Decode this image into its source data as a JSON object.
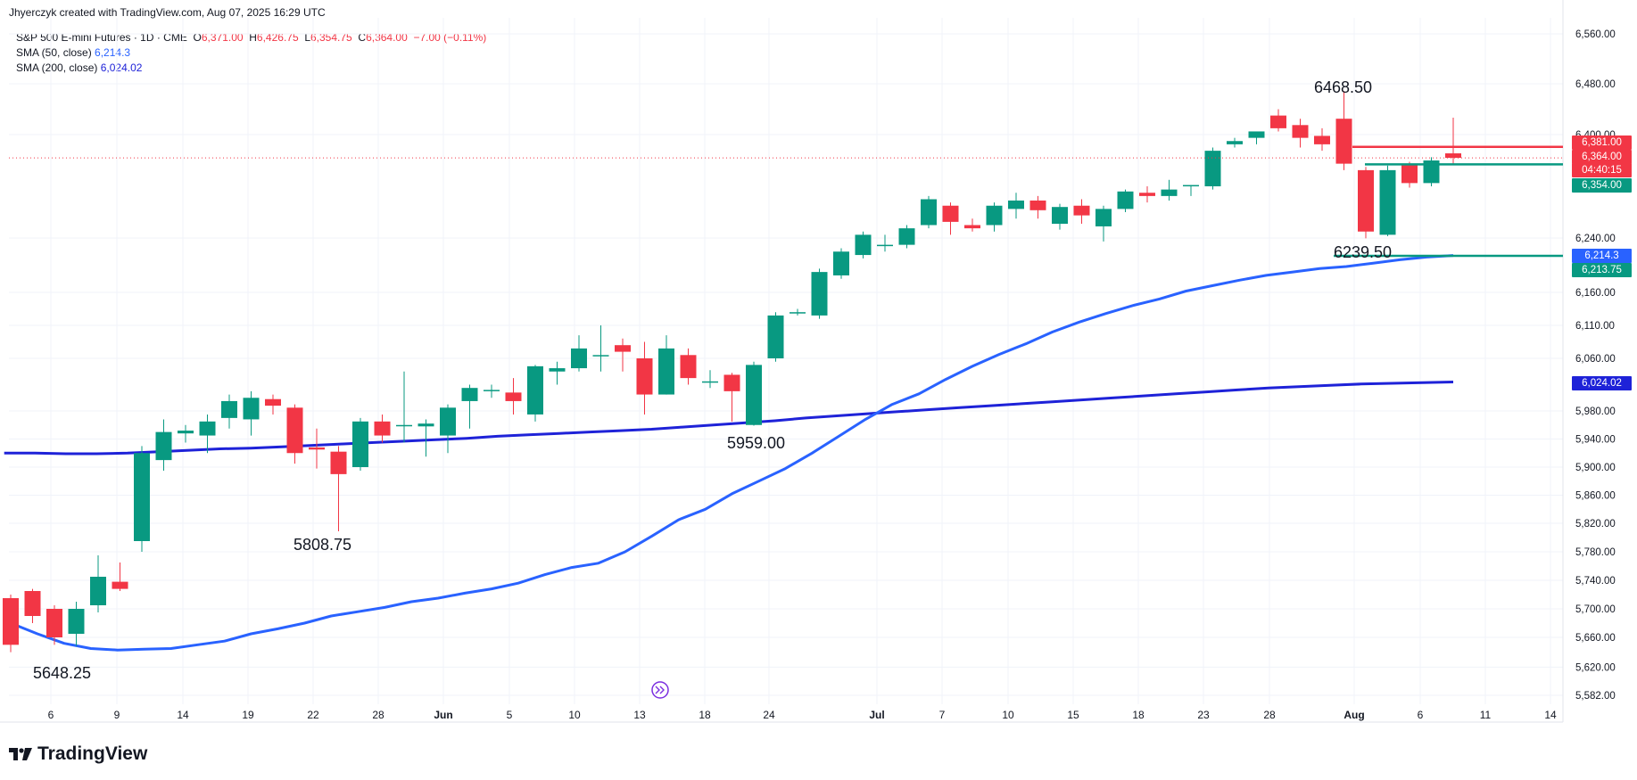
{
  "header": {
    "attribution": "Jhyerczyk created with TradingView.com, Aug 07, 2025 16:29 UTC"
  },
  "legend": {
    "symbol": "S&P 500 E-mini Futures · 1D · CME",
    "o_label": "O",
    "o_value": "6,371.00",
    "h_label": "H",
    "h_value": "6,426.75",
    "l_label": "L",
    "l_value": "6,354.75",
    "c_label": "C",
    "c_value": "6,364.00",
    "change": "−7.00 (−0.11%)",
    "sma50_label": "SMA (50, close)",
    "sma50_value": "6,214.3",
    "sma200_label": "SMA (200, close)",
    "sma200_value": "6,024.02"
  },
  "logo": {
    "text": "TradingView"
  },
  "colors": {
    "up": "#089981",
    "down": "#f23645",
    "sma50": "#2962ff",
    "sma200": "#1e22d8",
    "grid": "#f0f3fa"
  },
  "price_tags": {
    "resistance": "6,381.00",
    "last": "6,364.00",
    "countdown": "04:40:15",
    "support": "6,354.00",
    "sma50": "6,214.3",
    "low_line": "6,213.75",
    "sma200": "6,024.02"
  },
  "annotations": {
    "high": "6468.50",
    "low_aug": "6239.50",
    "low_jun20": "5959.00",
    "low_may22": "5808.75",
    "low_may6": "5648.25"
  },
  "chart_data": {
    "type": "candlestick",
    "y_ticks": [
      "6,560.00",
      "6,480.00",
      "6,400.00",
      "6,240.00",
      "6,160.00",
      "6,110.00",
      "6,060.00",
      "5,980.00",
      "5,940.00",
      "5,900.00",
      "5,860.00",
      "5,820.00",
      "5,780.00",
      "5,740.00",
      "5,700.00",
      "5,660.00",
      "5,620.00",
      "5,582.00"
    ],
    "x_ticks": [
      "6",
      "9",
      "14",
      "19",
      "22",
      "28",
      "Jun",
      "5",
      "10",
      "13",
      "18",
      "24",
      "Jul",
      "7",
      "10",
      "15",
      "18",
      "23",
      "28",
      "Aug",
      "6",
      "11",
      "14"
    ],
    "x_tick_bold": [
      "Jun",
      "Jul",
      "Aug"
    ],
    "candles": [
      {
        "o": 5715,
        "h": 5720,
        "l": 5640,
        "c": 5650
      },
      {
        "o": 5725,
        "h": 5728,
        "l": 5680,
        "c": 5690
      },
      {
        "o": 5700,
        "h": 5705,
        "l": 5650,
        "c": 5660
      },
      {
        "o": 5665,
        "h": 5710,
        "l": 5648.25,
        "c": 5700
      },
      {
        "o": 5705,
        "h": 5775,
        "l": 5695,
        "c": 5745
      },
      {
        "o": 5738,
        "h": 5765,
        "l": 5725,
        "c": 5728
      },
      {
        "o": 5795,
        "h": 5930,
        "l": 5780,
        "c": 5920
      },
      {
        "o": 5910,
        "h": 5968,
        "l": 5895,
        "c": 5950
      },
      {
        "o": 5948,
        "h": 5960,
        "l": 5935,
        "c": 5952
      },
      {
        "o": 5945,
        "h": 5975,
        "l": 5920,
        "c": 5965
      },
      {
        "o": 5970,
        "h": 6005,
        "l": 5955,
        "c": 5995
      },
      {
        "o": 5968,
        "h": 6010,
        "l": 5945,
        "c": 6000
      },
      {
        "o": 5998,
        "h": 6005,
        "l": 5975,
        "c": 5988
      },
      {
        "o": 5985,
        "h": 5990,
        "l": 5905,
        "c": 5920
      },
      {
        "o": 5928,
        "h": 5955,
        "l": 5898,
        "c": 5925
      },
      {
        "o": 5922,
        "h": 5930,
        "l": 5808.75,
        "c": 5890
      },
      {
        "o": 5900,
        "h": 5970,
        "l": 5895,
        "c": 5965
      },
      {
        "o": 5965,
        "h": 5975,
        "l": 5935,
        "c": 5945
      },
      {
        "o": 5960,
        "h": 6040,
        "l": 5935,
        "c": 5960
      },
      {
        "o": 5958,
        "h": 5968,
        "l": 5915,
        "c": 5962
      },
      {
        "o": 5945,
        "h": 5990,
        "l": 5920,
        "c": 5985
      },
      {
        "o": 5995,
        "h": 6020,
        "l": 5955,
        "c": 6015
      },
      {
        "o": 6010,
        "h": 6020,
        "l": 6000,
        "c": 6012
      },
      {
        "o": 6008,
        "h": 6030,
        "l": 5975,
        "c": 5995
      },
      {
        "o": 5975,
        "h": 6050,
        "l": 5965,
        "c": 6048
      },
      {
        "o": 6040,
        "h": 6055,
        "l": 6020,
        "c": 6045
      },
      {
        "o": 6045,
        "h": 6095,
        "l": 6040,
        "c": 6075
      },
      {
        "o": 6065,
        "h": 6110,
        "l": 6040,
        "c": 6065
      },
      {
        "o": 6080,
        "h": 6090,
        "l": 6040,
        "c": 6070
      },
      {
        "o": 6060,
        "h": 6085,
        "l": 5975,
        "c": 6005
      },
      {
        "o": 6005,
        "h": 6095,
        "l": 6005,
        "c": 6075
      },
      {
        "o": 6065,
        "h": 6075,
        "l": 6020,
        "c": 6030
      },
      {
        "o": 6025,
        "h": 6042,
        "l": 6015,
        "c": 6025
      },
      {
        "o": 6035,
        "h": 6038,
        "l": 5965,
        "c": 6010
      },
      {
        "o": 5960,
        "h": 6055,
        "l": 5959,
        "c": 6050
      },
      {
        "o": 6060,
        "h": 6130,
        "l": 6055,
        "c": 6125
      },
      {
        "o": 6130,
        "h": 6135,
        "l": 6125,
        "c": 6130
      },
      {
        "o": 6125,
        "h": 6195,
        "l": 6120,
        "c": 6190
      },
      {
        "o": 6185,
        "h": 6225,
        "l": 6180,
        "c": 6220
      },
      {
        "o": 6215,
        "h": 6250,
        "l": 6210,
        "c": 6245
      },
      {
        "o": 6230,
        "h": 6245,
        "l": 6220,
        "c": 6230
      },
      {
        "o": 6230,
        "h": 6260,
        "l": 6225,
        "c": 6255
      },
      {
        "o": 6260,
        "h": 6305,
        "l": 6255,
        "c": 6300
      },
      {
        "o": 6290,
        "h": 6295,
        "l": 6245,
        "c": 6265
      },
      {
        "o": 6260,
        "h": 6270,
        "l": 6250,
        "c": 6255
      },
      {
        "o": 6260,
        "h": 6295,
        "l": 6250,
        "c": 6290
      },
      {
        "o": 6285,
        "h": 6310,
        "l": 6270,
        "c": 6298
      },
      {
        "o": 6298,
        "h": 6305,
        "l": 6270,
        "c": 6283
      },
      {
        "o": 6262,
        "h": 6293,
        "l": 6253,
        "c": 6288
      },
      {
        "o": 6290,
        "h": 6300,
        "l": 6262,
        "c": 6275
      },
      {
        "o": 6258,
        "h": 6290,
        "l": 6235,
        "c": 6285
      },
      {
        "o": 6285,
        "h": 6315,
        "l": 6280,
        "c": 6312
      },
      {
        "o": 6310,
        "h": 6320,
        "l": 6295,
        "c": 6305
      },
      {
        "o": 6305,
        "h": 6330,
        "l": 6298,
        "c": 6315
      },
      {
        "o": 6320,
        "h": 6322,
        "l": 6305,
        "c": 6322
      },
      {
        "o": 6320,
        "h": 6380,
        "l": 6315,
        "c": 6375
      },
      {
        "o": 6385,
        "h": 6395,
        "l": 6380,
        "c": 6390
      },
      {
        "o": 6395,
        "h": 6405,
        "l": 6385,
        "c": 6405
      },
      {
        "o": 6430,
        "h": 6440,
        "l": 6405,
        "c": 6410
      },
      {
        "o": 6415,
        "h": 6425,
        "l": 6380,
        "c": 6395
      },
      {
        "o": 6398,
        "h": 6410,
        "l": 6375,
        "c": 6385
      },
      {
        "o": 6425,
        "h": 6468.5,
        "l": 6345,
        "c": 6355
      },
      {
        "o": 6345,
        "h": 6350,
        "l": 6239.5,
        "c": 6250
      },
      {
        "o": 6245,
        "h": 6352,
        "l": 6243,
        "c": 6345
      },
      {
        "o": 6355,
        "h": 6358,
        "l": 6318,
        "c": 6325
      },
      {
        "o": 6325,
        "h": 6365,
        "l": 6320,
        "c": 6360
      },
      {
        "o": 6371,
        "h": 6426.75,
        "l": 6354.75,
        "c": 6364
      }
    ],
    "sma50": [
      5680,
      5665,
      5652,
      5645,
      5643,
      5644,
      5645,
      5650,
      5655,
      5665,
      5672,
      5680,
      5690,
      5696,
      5702,
      5710,
      5715,
      5722,
      5728,
      5736,
      5748,
      5758,
      5764,
      5780,
      5802,
      5825,
      5840,
      5862,
      5880,
      5898,
      5920,
      5944,
      5968,
      5990,
      6006,
      6028,
      6048,
      6066,
      6082,
      6100,
      6115,
      6128,
      6140,
      6150,
      6162,
      6170,
      6178,
      6185,
      6190,
      6195,
      6198,
      6203,
      6208,
      6212,
      6214.3
    ],
    "sma200": [
      5920,
      5920,
      5919,
      5919,
      5920,
      5922,
      5924,
      5926,
      5927,
      5929,
      5931,
      5933,
      5935,
      5937,
      5939,
      5941,
      5944,
      5946,
      5948,
      5950,
      5952,
      5954,
      5957,
      5960,
      5963,
      5966,
      5970,
      5973,
      5976,
      5979,
      5982,
      5985,
      5988,
      5991,
      5994,
      5997,
      6000,
      6003,
      6006,
      6009,
      6012,
      6015,
      6017,
      6019,
      6021,
      6022,
      6023,
      6024.02
    ],
    "levels": {
      "resistance": 6381.0,
      "support": 6354.0,
      "low_line": 6213.75,
      "last": 6364.0
    }
  }
}
